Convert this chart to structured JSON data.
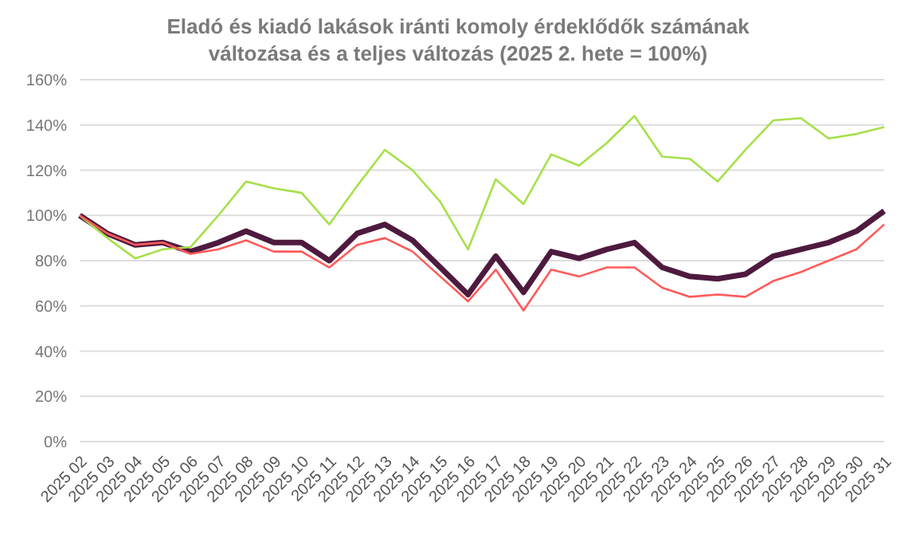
{
  "chart_data": {
    "type": "line",
    "title": "Eladó és kiadó lakások iránti komoly érdeklődők számának változása és a teljes változás (2025 2. hete = 100%)",
    "categories": [
      "2025 02",
      "2025 03",
      "2025 04",
      "2025 05",
      "2025 06",
      "2025 07",
      "2025 08",
      "2025 09",
      "2025 10",
      "2025 11",
      "2025 12",
      "2025 13",
      "2025 14",
      "2025 15",
      "2025 16",
      "2025 17",
      "2025 18",
      "2025 19",
      "2025 20",
      "2025 21",
      "2025 22",
      "2025 23",
      "2025 24",
      "2025 25",
      "2025 26",
      "2025 27",
      "2025 28",
      "2025 29",
      "2025 30",
      "2025 31"
    ],
    "series": [
      {
        "color": "#4e1a3e",
        "values": [
          100,
          92,
          87,
          88,
          84,
          88,
          93,
          88,
          88,
          80,
          92,
          96,
          89,
          77,
          65,
          82,
          66,
          84,
          81,
          85,
          88,
          77,
          73,
          72,
          74,
          82,
          85,
          88,
          93,
          102
        ]
      },
      {
        "color": "#a6e04a",
        "values": [
          100,
          90,
          81,
          85,
          86,
          100,
          115,
          112,
          110,
          96,
          113,
          129,
          120,
          106,
          85,
          116,
          105,
          127,
          122,
          132,
          144,
          126,
          125,
          115,
          129,
          142,
          143,
          134,
          136,
          139
        ]
      },
      {
        "color": "#ff5a5a",
        "values": [
          100,
          92,
          87,
          88,
          83,
          85,
          89,
          84,
          84,
          77,
          87,
          90,
          84,
          73,
          62,
          76,
          58,
          76,
          73,
          77,
          77,
          68,
          64,
          65,
          64,
          71,
          75,
          80,
          85,
          96
        ]
      }
    ],
    "ylim": [
      0,
      160
    ],
    "yticks": [
      {
        "value": 0,
        "label": "0%"
      },
      {
        "value": 20,
        "label": "20%"
      },
      {
        "value": 40,
        "label": "40%"
      },
      {
        "value": 60,
        "label": "60%"
      },
      {
        "value": 80,
        "label": "80%"
      },
      {
        "value": 100,
        "label": "100%"
      },
      {
        "value": 120,
        "label": "120%"
      },
      {
        "value": 140,
        "label": "140%"
      },
      {
        "value": 160,
        "label": "160%"
      }
    ],
    "grid": "y",
    "marker": "none",
    "line_style": "solid"
  }
}
